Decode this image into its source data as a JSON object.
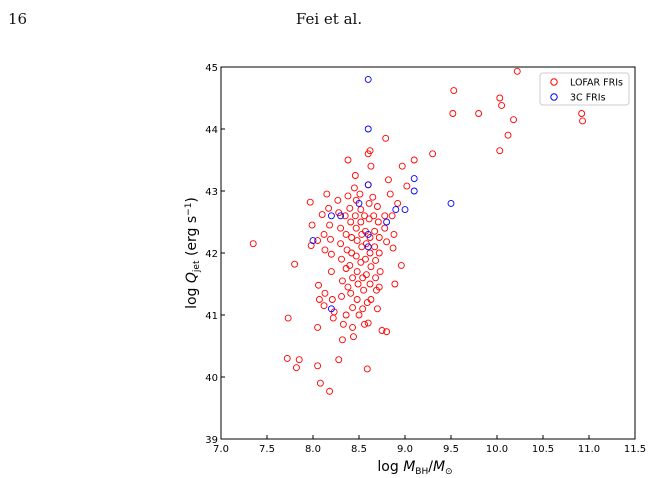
{
  "page": {
    "page_number": "16",
    "running_head": "Fei et al."
  },
  "chart_data": {
    "type": "scatter",
    "xlabel": "log M_BH/M_⊙",
    "ylabel": "log Q_jet (erg s^-1)",
    "xlim": [
      7.0,
      11.5
    ],
    "ylim": [
      39,
      45
    ],
    "xticks": [
      "7.0",
      "7.5",
      "8.0",
      "8.5",
      "9.0",
      "9.5",
      "10.0",
      "10.5",
      "11.0",
      "11.5"
    ],
    "yticks": [
      "39",
      "40",
      "41",
      "42",
      "43",
      "44",
      "45"
    ],
    "grid": false,
    "legend_position": "top-right",
    "marker": "open-circle",
    "series": [
      {
        "name": "LOFAR FRIs",
        "color": "#ff0000",
        "points": [
          [
            7.35,
            42.15
          ],
          [
            7.73,
            40.95
          ],
          [
            7.72,
            40.3
          ],
          [
            7.8,
            41.82
          ],
          [
            7.82,
            40.15
          ],
          [
            7.85,
            40.28
          ],
          [
            7.97,
            42.82
          ],
          [
            7.99,
            42.45
          ],
          [
            7.98,
            42.12
          ],
          [
            8.05,
            42.2
          ],
          [
            8.06,
            41.48
          ],
          [
            8.07,
            41.25
          ],
          [
            8.05,
            40.8
          ],
          [
            8.05,
            40.18
          ],
          [
            8.08,
            39.9
          ],
          [
            8.1,
            42.62
          ],
          [
            8.12,
            42.3
          ],
          [
            8.13,
            42.05
          ],
          [
            8.13,
            41.35
          ],
          [
            8.12,
            41.15
          ],
          [
            8.18,
            39.77
          ],
          [
            8.15,
            42.95
          ],
          [
            8.17,
            42.72
          ],
          [
            8.18,
            42.45
          ],
          [
            8.19,
            42.22
          ],
          [
            8.2,
            41.98
          ],
          [
            8.2,
            41.7
          ],
          [
            8.21,
            41.25
          ],
          [
            8.23,
            41.05
          ],
          [
            8.22,
            40.95
          ],
          [
            8.27,
            42.85
          ],
          [
            8.28,
            42.65
          ],
          [
            8.3,
            42.4
          ],
          [
            8.3,
            42.15
          ],
          [
            8.31,
            41.9
          ],
          [
            8.32,
            41.55
          ],
          [
            8.31,
            41.3
          ],
          [
            8.33,
            40.85
          ],
          [
            8.32,
            40.6
          ],
          [
            8.28,
            40.28
          ],
          [
            8.35,
            42.6
          ],
          [
            8.36,
            42.3
          ],
          [
            8.37,
            42.05
          ],
          [
            8.36,
            41.75
          ],
          [
            8.38,
            41.45
          ],
          [
            8.36,
            41.0
          ],
          [
            8.38,
            43.5
          ],
          [
            8.38,
            42.92
          ],
          [
            8.4,
            42.72
          ],
          [
            8.41,
            42.5
          ],
          [
            8.42,
            42.25
          ],
          [
            8.42,
            42.0
          ],
          [
            8.4,
            41.8
          ],
          [
            8.43,
            41.6
          ],
          [
            8.41,
            41.35
          ],
          [
            8.43,
            41.12
          ],
          [
            8.43,
            40.8
          ],
          [
            8.44,
            40.65
          ],
          [
            8.46,
            43.25
          ],
          [
            8.45,
            43.05
          ],
          [
            8.47,
            42.85
          ],
          [
            8.46,
            42.6
          ],
          [
            8.47,
            42.4
          ],
          [
            8.48,
            42.2
          ],
          [
            8.47,
            41.95
          ],
          [
            8.48,
            41.7
          ],
          [
            8.49,
            41.5
          ],
          [
            8.48,
            41.25
          ],
          [
            8.5,
            41.0
          ],
          [
            8.51,
            42.95
          ],
          [
            8.52,
            42.7
          ],
          [
            8.52,
            42.5
          ],
          [
            8.53,
            42.3
          ],
          [
            8.53,
            42.1
          ],
          [
            8.52,
            41.85
          ],
          [
            8.54,
            41.6
          ],
          [
            8.55,
            41.4
          ],
          [
            8.54,
            41.1
          ],
          [
            8.56,
            40.85
          ],
          [
            8.56,
            42.6
          ],
          [
            8.57,
            42.35
          ],
          [
            8.58,
            42.15
          ],
          [
            8.57,
            41.9
          ],
          [
            8.58,
            41.65
          ],
          [
            8.59,
            41.2
          ],
          [
            8.6,
            43.6
          ],
          [
            8.6,
            43.1
          ],
          [
            8.61,
            42.8
          ],
          [
            8.61,
            42.55
          ],
          [
            8.62,
            42.25
          ],
          [
            8.62,
            42.0
          ],
          [
            8.63,
            41.78
          ],
          [
            8.62,
            41.5
          ],
          [
            8.63,
            41.25
          ],
          [
            8.6,
            40.87
          ],
          [
            8.59,
            40.13
          ],
          [
            8.62,
            43.65
          ],
          [
            8.63,
            43.4
          ],
          [
            8.65,
            42.9
          ],
          [
            8.66,
            42.6
          ],
          [
            8.67,
            42.35
          ],
          [
            8.67,
            42.1
          ],
          [
            8.68,
            41.88
          ],
          [
            8.68,
            41.6
          ],
          [
            8.69,
            41.4
          ],
          [
            8.7,
            41.1
          ],
          [
            8.7,
            42.75
          ],
          [
            8.71,
            42.5
          ],
          [
            8.72,
            42.25
          ],
          [
            8.72,
            42.0
          ],
          [
            8.73,
            41.7
          ],
          [
            8.72,
            41.45
          ],
          [
            8.75,
            40.75
          ],
          [
            8.79,
            43.85
          ],
          [
            8.78,
            42.6
          ],
          [
            8.78,
            42.4
          ],
          [
            8.8,
            42.18
          ],
          [
            8.8,
            40.73
          ],
          [
            8.82,
            43.18
          ],
          [
            8.84,
            42.95
          ],
          [
            8.86,
            42.6
          ],
          [
            8.88,
            42.3
          ],
          [
            8.87,
            42.08
          ],
          [
            8.89,
            41.5
          ],
          [
            8.92,
            42.8
          ],
          [
            8.96,
            41.8
          ],
          [
            8.97,
            43.4
          ],
          [
            9.02,
            43.08
          ],
          [
            9.1,
            43.5
          ],
          [
            9.3,
            43.6
          ],
          [
            9.52,
            44.25
          ],
          [
            9.53,
            44.62
          ],
          [
            9.8,
            44.25
          ],
          [
            10.03,
            44.5
          ],
          [
            10.05,
            44.38
          ],
          [
            10.03,
            43.65
          ],
          [
            10.12,
            43.9
          ],
          [
            10.18,
            44.15
          ],
          [
            10.22,
            44.93
          ],
          [
            10.92,
            44.25
          ],
          [
            10.93,
            44.13
          ]
        ]
      },
      {
        "name": "3C FRIs",
        "color": "#0000ff",
        "points": [
          [
            8.6,
            44.8
          ],
          [
            8.6,
            44.0
          ],
          [
            8.6,
            43.1
          ],
          [
            8.5,
            42.8
          ],
          [
            8.6,
            42.3
          ],
          [
            8.6,
            42.1
          ],
          [
            8.3,
            42.6
          ],
          [
            8.2,
            42.6
          ],
          [
            8.0,
            42.2
          ],
          [
            8.2,
            41.1
          ],
          [
            8.8,
            42.5
          ],
          [
            8.9,
            42.7
          ],
          [
            9.0,
            42.7
          ],
          [
            9.1,
            43.0
          ],
          [
            9.1,
            43.2
          ],
          [
            9.5,
            42.8
          ]
        ]
      }
    ]
  }
}
